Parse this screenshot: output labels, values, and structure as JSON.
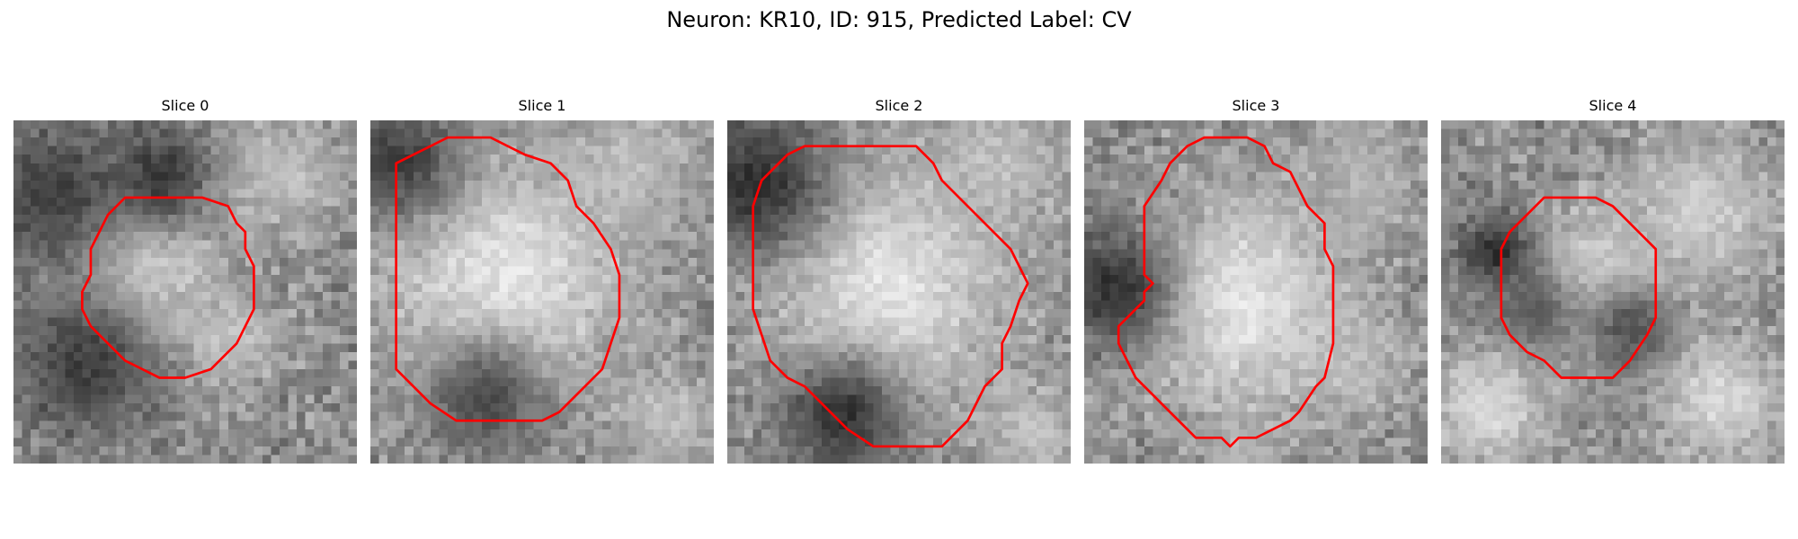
{
  "title": "Neuron: KR10, ID: 915, Predicted Label: CV",
  "contour_color": "#ff0000",
  "slices": [
    {
      "label": "Slice 0",
      "contour": [
        [
          16,
          9
        ],
        [
          22,
          9
        ],
        [
          25,
          10
        ],
        [
          26,
          12
        ],
        [
          27,
          13
        ],
        [
          27,
          15
        ],
        [
          28,
          17
        ],
        [
          28,
          22
        ],
        [
          27,
          24
        ],
        [
          26,
          26
        ],
        [
          25,
          27
        ],
        [
          23,
          29
        ],
        [
          20,
          30
        ],
        [
          17,
          30
        ],
        [
          15,
          29
        ],
        [
          13,
          28
        ],
        [
          11,
          26
        ],
        [
          9,
          24
        ],
        [
          8,
          22
        ],
        [
          8,
          20
        ],
        [
          9,
          18
        ],
        [
          9,
          15
        ],
        [
          10,
          13
        ],
        [
          11,
          11
        ],
        [
          13,
          9
        ]
      ],
      "blobs": [
        [
          15,
          17,
          6,
          0.85
        ],
        [
          8,
          28,
          6,
          0.25
        ],
        [
          4,
          8,
          6,
          0.25
        ],
        [
          25,
          25,
          4,
          0.75
        ],
        [
          17,
          6,
          4,
          0.2
        ],
        [
          31,
          6,
          5,
          0.75
        ]
      ]
    },
    {
      "label": "Slice 1",
      "contour": [
        [
          9,
          2
        ],
        [
          14,
          2
        ],
        [
          16,
          3
        ],
        [
          18,
          4
        ],
        [
          21,
          5
        ],
        [
          23,
          7
        ],
        [
          24,
          10
        ],
        [
          26,
          12
        ],
        [
          28,
          15
        ],
        [
          29,
          18
        ],
        [
          29,
          23
        ],
        [
          28,
          26
        ],
        [
          27,
          29
        ],
        [
          25,
          31
        ],
        [
          22,
          34
        ],
        [
          20,
          35
        ],
        [
          10,
          35
        ],
        [
          7,
          33
        ],
        [
          5,
          31
        ],
        [
          3,
          29
        ],
        [
          3,
          5
        ],
        [
          5,
          4
        ],
        [
          7,
          3
        ]
      ],
      "blobs": [
        [
          15,
          18,
          10,
          0.9
        ],
        [
          3,
          4,
          5,
          0.25
        ],
        [
          13,
          32,
          5,
          0.3
        ],
        [
          30,
          5,
          5,
          0.75
        ],
        [
          34,
          34,
          4,
          0.75
        ]
      ]
    },
    {
      "label": "Slice 2",
      "contour": [
        [
          9,
          3
        ],
        [
          12,
          3
        ],
        [
          17,
          3
        ],
        [
          22,
          3
        ],
        [
          24,
          5
        ],
        [
          25,
          7
        ],
        [
          27,
          9
        ],
        [
          29,
          11
        ],
        [
          31,
          13
        ],
        [
          33,
          15
        ],
        [
          34,
          17
        ],
        [
          35,
          19
        ],
        [
          34,
          21
        ],
        [
          33,
          24
        ],
        [
          32,
          26
        ],
        [
          32,
          29
        ],
        [
          30,
          31
        ],
        [
          29,
          33
        ],
        [
          28,
          35
        ],
        [
          25,
          38
        ],
        [
          17,
          38
        ],
        [
          14,
          36
        ],
        [
          12,
          34
        ],
        [
          10,
          32
        ],
        [
          9,
          31
        ],
        [
          7,
          30
        ],
        [
          5,
          28
        ],
        [
          4,
          25
        ],
        [
          3,
          22
        ],
        [
          3,
          10
        ],
        [
          4,
          7
        ],
        [
          6,
          5
        ],
        [
          7,
          4
        ]
      ],
      "blobs": [
        [
          18,
          19,
          10,
          0.9
        ],
        [
          3,
          7,
          6,
          0.2
        ],
        [
          13,
          34,
          5,
          0.2
        ],
        [
          35,
          36,
          4,
          0.75
        ],
        [
          31,
          4,
          5,
          0.75
        ]
      ]
    },
    {
      "label": "Slice 3",
      "contour": [
        [
          14,
          2
        ],
        [
          19,
          2
        ],
        [
          21,
          3
        ],
        [
          22,
          5
        ],
        [
          24,
          6
        ],
        [
          25,
          8
        ],
        [
          26,
          10
        ],
        [
          27,
          11
        ],
        [
          28,
          12
        ],
        [
          28,
          15
        ],
        [
          29,
          17
        ],
        [
          29,
          26
        ],
        [
          28,
          30
        ],
        [
          27,
          31
        ],
        [
          25,
          34
        ],
        [
          24,
          35
        ],
        [
          22,
          36
        ],
        [
          20,
          37
        ],
        [
          18,
          37
        ],
        [
          17,
          38
        ],
        [
          16,
          37
        ],
        [
          13,
          37
        ],
        [
          11,
          35
        ],
        [
          9,
          33
        ],
        [
          8,
          32
        ],
        [
          6,
          30
        ],
        [
          5,
          28
        ],
        [
          4,
          26
        ],
        [
          4,
          24
        ],
        [
          5,
          23
        ],
        [
          6,
          22
        ],
        [
          7,
          21
        ],
        [
          7,
          20
        ],
        [
          8,
          19
        ],
        [
          7,
          18
        ],
        [
          7,
          10
        ],
        [
          9,
          7
        ],
        [
          10,
          5
        ],
        [
          12,
          3
        ]
      ],
      "blobs": [
        [
          18,
          21,
          9,
          0.9
        ],
        [
          3,
          19,
          5,
          0.2
        ],
        [
          30,
          28,
          4,
          0.75
        ],
        [
          32,
          6,
          5,
          0.7
        ],
        [
          18,
          38,
          3,
          0.7
        ]
      ]
    },
    {
      "label": "Slice 4",
      "contour": [
        [
          12,
          9
        ],
        [
          18,
          9
        ],
        [
          20,
          10
        ],
        [
          22,
          12
        ],
        [
          24,
          14
        ],
        [
          25,
          15
        ],
        [
          25,
          23
        ],
        [
          24,
          25
        ],
        [
          22,
          28
        ],
        [
          20,
          30
        ],
        [
          14,
          30
        ],
        [
          12,
          28
        ],
        [
          10,
          27
        ],
        [
          8,
          25
        ],
        [
          7,
          23
        ],
        [
          7,
          15
        ],
        [
          8,
          13
        ],
        [
          10,
          11
        ]
      ],
      "blobs": [
        [
          17,
          18,
          6,
          0.85
        ],
        [
          6,
          15,
          3,
          0.15
        ],
        [
          10,
          22,
          4,
          0.35
        ],
        [
          22,
          24,
          4,
          0.3
        ],
        [
          30,
          10,
          6,
          0.8
        ],
        [
          5,
          33,
          5,
          0.85
        ],
        [
          32,
          32,
          5,
          0.85
        ]
      ]
    }
  ]
}
